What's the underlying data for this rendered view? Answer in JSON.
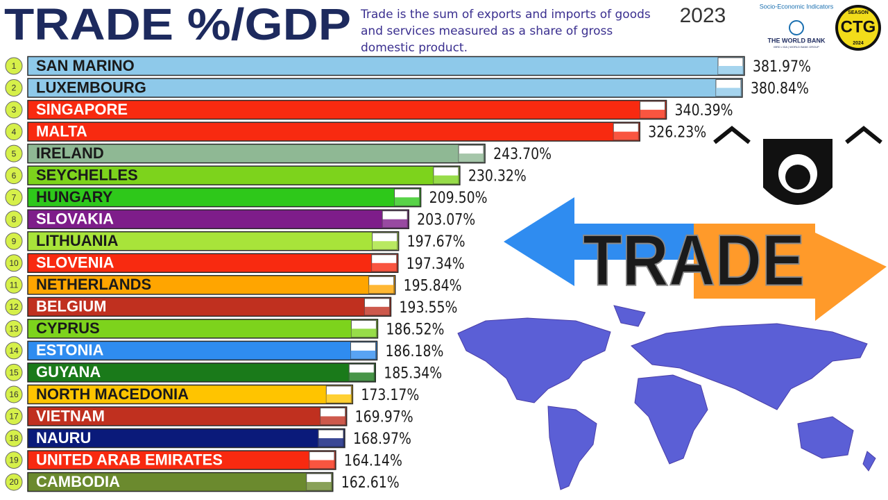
{
  "chart_data": {
    "type": "bar",
    "orientation": "horizontal",
    "title": "TRADE %/GDP",
    "subtitle": "Trade is the sum of exports and imports of goods and services measured as a share of gross domestic product.",
    "year": "2023",
    "ranks": [
      1,
      2,
      3,
      4,
      5,
      6,
      7,
      8,
      9,
      10,
      11,
      12,
      13,
      14,
      15,
      16,
      17,
      18,
      19,
      20
    ],
    "categories": [
      "SAN MARINO",
      "LUXEMBOURG",
      "SINGAPORE",
      "MALTA",
      "IRELAND",
      "SEYCHELLES",
      "HUNGARY",
      "SLOVAKIA",
      "LITHUANIA",
      "SLOVENIA",
      "NETHERLANDS",
      "BELGIUM",
      "CYPRUS",
      "ESTONIA",
      "GUYANA",
      "NORTH MACEDONIA",
      "VIETNAM",
      "NAURU",
      "UNITED ARAB EMIRATES",
      "CAMBODIA"
    ],
    "values": [
      381.97,
      380.84,
      340.39,
      326.23,
      243.7,
      230.32,
      209.5,
      203.07,
      197.67,
      197.34,
      195.84,
      193.55,
      186.52,
      186.18,
      185.34,
      173.17,
      169.97,
      168.97,
      164.14,
      162.61
    ],
    "value_labels": [
      "381.97%",
      "380.84%",
      "340.39%",
      "326.23%",
      "243.70%",
      "230.32%",
      "209.50%",
      "203.07%",
      "197.67%",
      "197.34%",
      "195.84%",
      "193.55%",
      "186.52%",
      "186.18%",
      "185.34%",
      "173.17%",
      "169.97%",
      "168.97%",
      "164.14%",
      "162.61%"
    ],
    "colors": [
      "#8ec9ea",
      "#8ec9ea",
      "#f82a10",
      "#f82a10",
      "#8fb894",
      "#7dd31c",
      "#2ec81a",
      "#7e1d8a",
      "#a8e43a",
      "#f82a10",
      "#ffa500",
      "#c0301f",
      "#7dd31c",
      "#2f8cf0",
      "#1a7a1a",
      "#ffc400",
      "#c0301f",
      "#0a1a7a",
      "#f82a10",
      "#6b8a2e"
    ]
  },
  "branding": {
    "source": "Socio-Economic Indicators",
    "org": "THE WORLD BANK",
    "org_sub": "IBRD • IDA | WORLD BANK GROUP",
    "badge_top": "SEASON",
    "badge": "CTG",
    "badge_year": "2024"
  },
  "graphic": {
    "word": "TRADE"
  }
}
